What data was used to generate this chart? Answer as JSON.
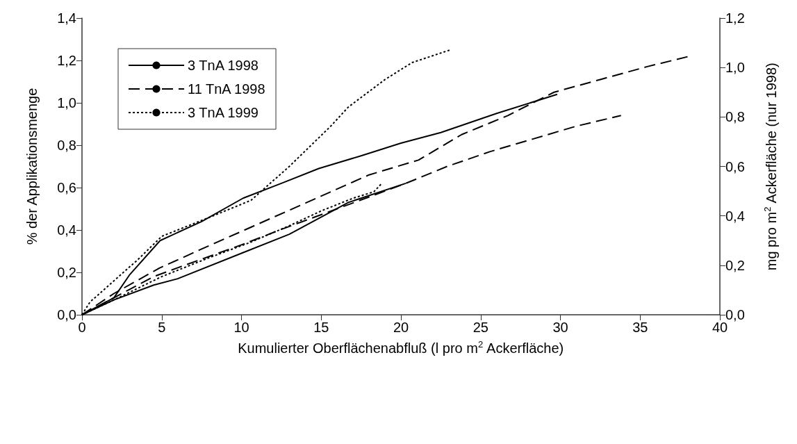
{
  "chart_data": {
    "type": "line",
    "xlabel": "Kumulierter Oberflächenabfluß (l pro m$^{2}$ Ackerfläche)",
    "ylabel": "% der Applikationsmenge",
    "y2label": "mg pro m$^{2}$ Ackerfläche (nur 1998)",
    "xlim": [
      0,
      40
    ],
    "xticks": [
      0,
      5,
      10,
      15,
      20,
      25,
      30,
      35,
      40
    ],
    "ylim": [
      0,
      1.4
    ],
    "yticks": [
      {
        "value": 0,
        "label": "0,0"
      },
      {
        "value": 0.2,
        "label": "0,2"
      },
      {
        "value": 0.4,
        "label": "0,4"
      },
      {
        "value": 0.6,
        "label": "0,6"
      },
      {
        "value": 0.8,
        "label": "0,8"
      },
      {
        "value": 1.0,
        "label": "1,0"
      },
      {
        "value": 1.2,
        "label": "1,2"
      },
      {
        "value": 1.4,
        "label": "1,4"
      }
    ],
    "y2lim": [
      0,
      1.2
    ],
    "y2ticks": [
      {
        "value": 0,
        "label": "0,0"
      },
      {
        "value": 0.2,
        "label": "0,2"
      },
      {
        "value": 0.4,
        "label": "0,4"
      },
      {
        "value": 0.6,
        "label": "0,6"
      },
      {
        "value": 0.8,
        "label": "0,8"
      },
      {
        "value": 1.0,
        "label": "1,0"
      },
      {
        "value": 1.2,
        "label": "1,2"
      }
    ],
    "grid": false,
    "legend": "top left",
    "marker": "none",
    "series": [
      {
        "name": "3 TnA 1998",
        "color": "#000000",
        "line_style": "solid",
        "x": [
          0,
          1,
          2,
          3,
          4.9,
          7.5,
          10.1,
          12.5,
          14.85,
          17.5,
          20,
          22.5,
          26,
          29.8
        ],
        "values": [
          0,
          0.04,
          0.08,
          0.19,
          0.35,
          0.44,
          0.55,
          0.62,
          0.69,
          0.75,
          0.81,
          0.86,
          0.95,
          1.04
        ]
      },
      {
        "name": "11 TnA 1998",
        "color": "#000000",
        "line_style": "dashed",
        "x": [
          0,
          2,
          4.85,
          7.5,
          10.2,
          13.8,
          18,
          21.1,
          23.8,
          26.7,
          29.6,
          32.5,
          35.4,
          38.1
        ],
        "values": [
          0,
          0.1,
          0.22,
          0.31,
          0.4,
          0.52,
          0.66,
          0.73,
          0.85,
          0.94,
          1.05,
          1.11,
          1.17,
          1.22
        ]
      },
      {
        "name": "3 TnA 1999",
        "color": "#000000",
        "line_style": "dotted",
        "x": [
          0,
          0.5,
          2,
          3.5,
          5,
          8,
          10.6,
          13,
          15.6,
          16.7,
          19,
          20.7,
          23.1
        ],
        "values": [
          0,
          0.06,
          0.16,
          0.26,
          0.37,
          0.46,
          0.54,
          0.7,
          0.89,
          0.98,
          1.11,
          1.19,
          1.25
        ]
      },
      {
        "color": "#000000",
        "line_style": "solid",
        "x": [
          0,
          2,
          4.5,
          6,
          10,
          13,
          16.7,
          20.3
        ],
        "values": [
          0,
          0.07,
          0.14,
          0.17,
          0.29,
          0.38,
          0.53,
          0.62
        ]
      },
      {
        "color": "#000000",
        "line_style": "dashed",
        "x": [
          0,
          2,
          4.5,
          6.3,
          10,
          12.4,
          16,
          20.3,
          22.9,
          25.6,
          28.3,
          31,
          33.8
        ],
        "values": [
          0,
          0.08,
          0.18,
          0.23,
          0.33,
          0.4,
          0.5,
          0.62,
          0.7,
          0.77,
          0.83,
          0.89,
          0.94
        ]
      },
      {
        "color": "#000000",
        "line_style": "dotted",
        "x": [
          0,
          2,
          5,
          8,
          10.5,
          13,
          15,
          17,
          18.3,
          18.8
        ],
        "values": [
          0,
          0.07,
          0.18,
          0.27,
          0.34,
          0.42,
          0.49,
          0.55,
          0.58,
          0.62
        ]
      }
    ]
  }
}
